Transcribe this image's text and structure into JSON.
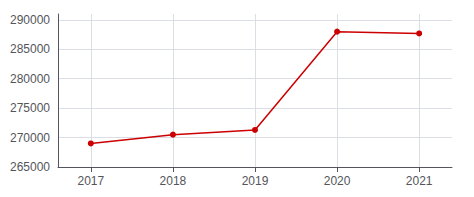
{
  "chart_data": {
    "type": "line",
    "x": [
      2017,
      2018,
      2019,
      2020,
      2021
    ],
    "values": [
      269000,
      270500,
      271300,
      288000,
      287700
    ],
    "color": "#cc0000",
    "marker": "circle",
    "xlim": [
      2016.6,
      2021.4
    ],
    "xticks": [
      2017,
      2018,
      2019,
      2020,
      2021
    ],
    "ylim": [
      265000,
      291000
    ],
    "yticks": [
      265000,
      270000,
      275000,
      280000,
      285000,
      290000
    ],
    "grid": true
  }
}
